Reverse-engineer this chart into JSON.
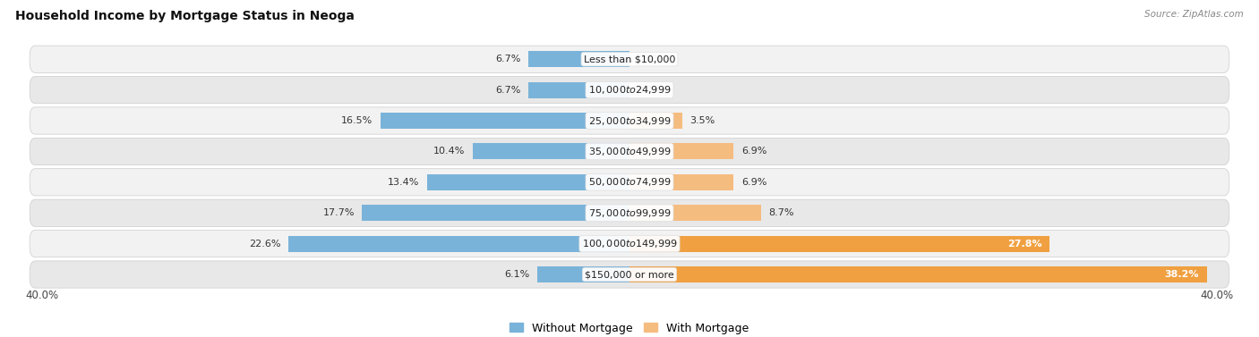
{
  "title": "Household Income by Mortgage Status in Neoga",
  "source": "Source: ZipAtlas.com",
  "categories": [
    "Less than $10,000",
    "$10,000 to $24,999",
    "$25,000 to $34,999",
    "$35,000 to $49,999",
    "$50,000 to $74,999",
    "$75,000 to $99,999",
    "$100,000 to $149,999",
    "$150,000 or more"
  ],
  "without_mortgage": [
    6.7,
    6.7,
    16.5,
    10.4,
    13.4,
    17.7,
    22.6,
    6.1
  ],
  "with_mortgage": [
    0.0,
    0.0,
    3.5,
    6.9,
    6.9,
    8.7,
    27.8,
    38.2
  ],
  "color_without": "#7ab3d9",
  "color_with": "#f5bc80",
  "color_with_large": "#f0a040",
  "axis_max": 40.0,
  "title_fontsize": 10,
  "label_fontsize": 8,
  "value_fontsize": 8,
  "tick_fontsize": 8.5,
  "legend_fontsize": 9,
  "bar_height": 0.52,
  "row_bg_even": "#f2f2f2",
  "row_bg_odd": "#e8e8e8"
}
